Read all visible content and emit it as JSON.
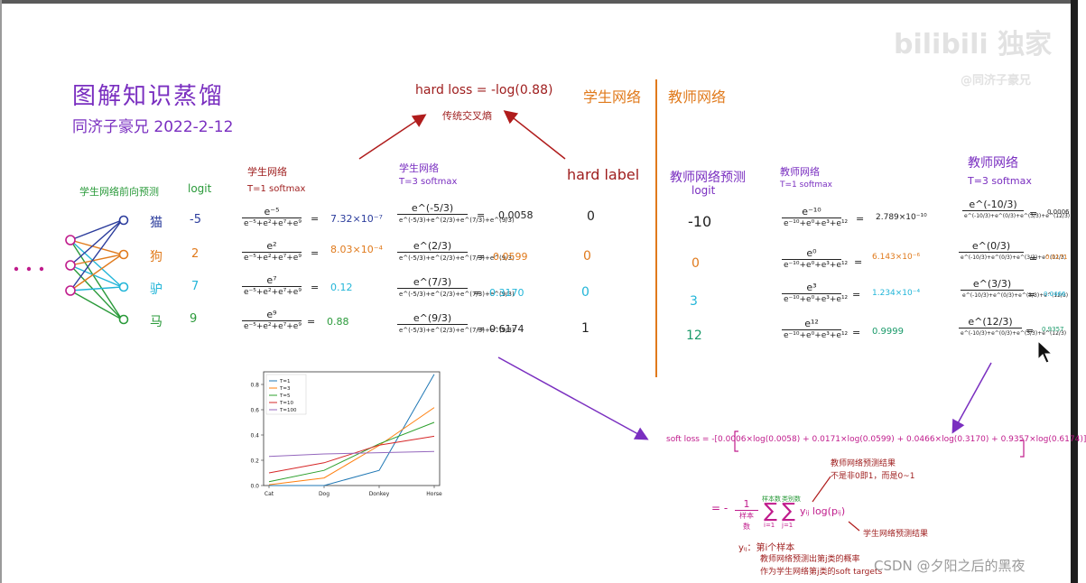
{
  "title": {
    "line1": "图解知识蒸馏",
    "line2": "同济子豪兄 2022-2-12"
  },
  "watermark": {
    "logo": "bilibili 独家",
    "sub": "@同济子豪兄"
  },
  "csdn_watermark": "CSDN @夕阳之后的黑夜",
  "hard_loss": {
    "formula": "hard loss = -log(0.88)",
    "caption": "传统交叉熵"
  },
  "headers": {
    "student": "学生网络",
    "teacher": "教师网络",
    "hard_label": "hard label"
  },
  "student_block": {
    "header": "学生网络前向预测",
    "logit_header": "logit",
    "classes": [
      "猫",
      "狗",
      "驴",
      "马"
    ],
    "logits": [
      "-5",
      "2",
      "7",
      "9"
    ],
    "t1_header": [
      "学生网络",
      "T=1 softmax"
    ],
    "t1_numerators": [
      "e⁻⁵",
      "e²",
      "e⁷",
      "e⁹"
    ],
    "t1_denominator": "e⁻⁵+e²+e⁷+e⁹",
    "t1_values": [
      "7.32×10⁻⁷",
      "8.03×10⁻⁴",
      "0.12",
      "0.88"
    ],
    "t3_header": [
      "学生网络",
      "T=3 softmax"
    ],
    "t3_numerators": [
      "e^(-5/3)",
      "e^(2/3)",
      "e^(7/3)",
      "e^(9/3)"
    ],
    "t3_denominator": "e^(-5/3)+e^(2/3)+e^(7/3)+e^(9/3)",
    "t3_values": [
      "0.0058",
      "0.0599",
      "0.3170",
      "0.6174"
    ],
    "hard_labels": [
      "0",
      "0",
      "0",
      "1"
    ]
  },
  "teacher_block": {
    "pred_header": [
      "教师网络预测",
      "logit"
    ],
    "logits": [
      "-10",
      "0",
      "3",
      "12"
    ],
    "t1_header": [
      "教师网络",
      "T=1 softmax"
    ],
    "t1_numerators": [
      "e⁻¹⁰",
      "e⁰",
      "e³",
      "e¹²"
    ],
    "t1_denominator": "e⁻¹⁰+e⁰+e³+e¹²",
    "t1_values": [
      "2.789×10⁻¹⁰",
      "6.143×10⁻⁶",
      "1.234×10⁻⁴",
      "0.9999"
    ],
    "t3_header": [
      "教师网络",
      "T=3 softmax"
    ],
    "t3_numerators": [
      "e^(-10/3)",
      "e^(0/3)",
      "e^(3/3)",
      "e^(12/3)"
    ],
    "t3_denominator": "e^(-10/3)+e^(0/3)+e^(3/3)+e^(12/3)",
    "t3_values": [
      "0.0006",
      "0.0171",
      "0.0466",
      "0.9357"
    ]
  },
  "soft_loss": {
    "formula": "soft loss = -[0.0006×log(0.0058) + 0.0171×log(0.0599) + 0.0466×log(0.3170) + 0.9357×log(0.6174)]",
    "general_lhs": "= -",
    "frac_num": "1",
    "frac_den": "样本数",
    "sum1_top": "样本数",
    "sum1_bottom": "i=1",
    "sum2_top": "类别数",
    "sum2_bottom": "j=1",
    "term": "yᵢⱼ log(pᵢⱼ)",
    "note_teacher": [
      "教师网络预测结果",
      "不是非0即1，而是0~1"
    ],
    "note_student": "学生网络预测结果",
    "note_yij": [
      "yᵢⱼ：第i个样本",
      "教师网络预测出第j类的概率",
      "作为学生网络第j类的soft targets"
    ]
  },
  "colors": {
    "purple": "#7a2fc0",
    "dark_red": "#9e1c1c",
    "orange": "#e07a1c",
    "green": "#2a9a3a",
    "cyan": "#22b5d8",
    "blue": "#2b3c9c",
    "magenta": "#c01c8c"
  },
  "chart_data": {
    "type": "line",
    "categories": [
      "Cat",
      "Dog",
      "Donkey",
      "Horse"
    ],
    "series": [
      {
        "name": "T=1",
        "color": "#1f77b4",
        "values": [
          0.0,
          0.0,
          0.12,
          0.88
        ]
      },
      {
        "name": "T=3",
        "color": "#ff7f0e",
        "values": [
          0.006,
          0.06,
          0.317,
          0.617
        ]
      },
      {
        "name": "T=5",
        "color": "#2ca02c",
        "values": [
          0.03,
          0.12,
          0.33,
          0.5
        ]
      },
      {
        "name": "T=10",
        "color": "#d62728",
        "values": [
          0.1,
          0.18,
          0.32,
          0.39
        ]
      },
      {
        "name": "T=100",
        "color": "#9467bd",
        "values": [
          0.23,
          0.25,
          0.26,
          0.27
        ]
      }
    ],
    "y_ticks": [
      "0.0",
      "0.2",
      "0.4",
      "0.6",
      "0.8"
    ],
    "ylim": [
      0,
      0.9
    ],
    "legend": "top-left"
  }
}
